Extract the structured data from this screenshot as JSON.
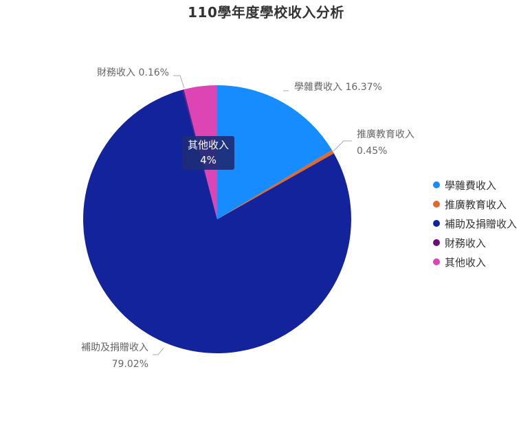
{
  "chart_data": {
    "type": "pie",
    "title": "110學年度學校收入分析",
    "categories": [
      "學雜費收入",
      "推廣教育收入",
      "補助及捐贈收入",
      "財務收入",
      "其他收入"
    ],
    "values": [
      16.37,
      0.45,
      79.02,
      0.16,
      4
    ],
    "value_labels": [
      "16.37%",
      "0.45%",
      "79.02%",
      "0.16%",
      "4%"
    ],
    "colors": [
      "#178cff",
      "#e06a2b",
      "#13239c",
      "#6a0e7a",
      "#dd44b4"
    ],
    "legend_position": "right",
    "tooltip": {
      "label": "其他收入",
      "value": "4%"
    }
  }
}
